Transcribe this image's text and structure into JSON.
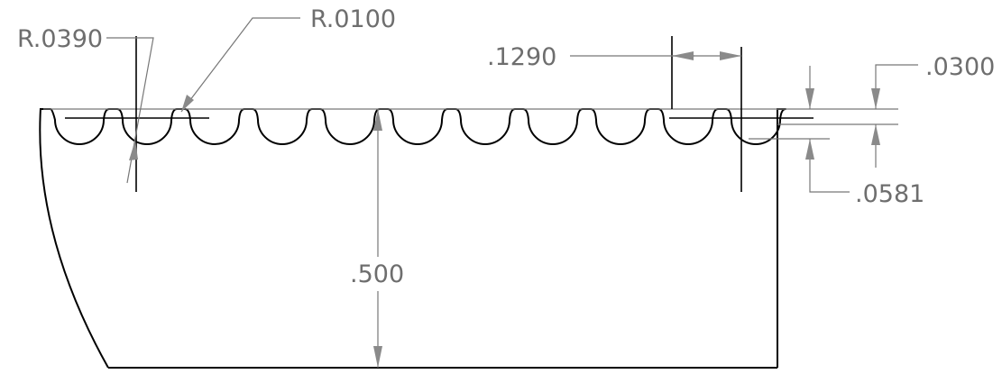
{
  "drawing": {
    "dimensions": {
      "radius_large": "R.0390",
      "radius_small": "R.0100",
      "pitch": ".1290",
      "top_depth": ".0300",
      "groove_depth": ".0581",
      "height": ".500"
    }
  }
}
